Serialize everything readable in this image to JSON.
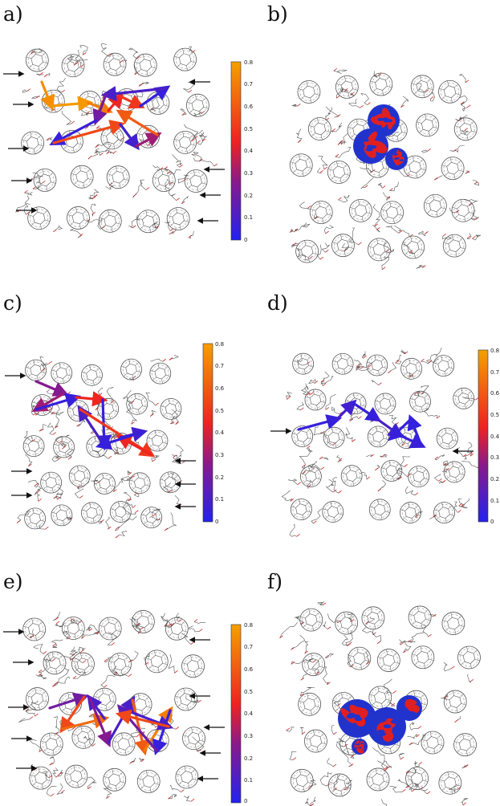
{
  "panels": [
    {
      "label": "a)",
      "scale_ticks": [
        "0.8",
        "0.7",
        "0.6",
        "0.5",
        "0.4",
        "0.3",
        "0.2",
        "0.1",
        "0"
      ]
    },
    {
      "label": "b)"
    },
    {
      "label": "c)",
      "scale_ticks": [
        "0.8",
        "0.7",
        "0.6",
        "0.5",
        "0.4",
        "0.3",
        "0.2",
        "0.1",
        "0"
      ]
    },
    {
      "label": "d)",
      "scale_ticks": [
        "0.8",
        "0.7",
        "0.6",
        "0.5",
        "0.4",
        "0.3",
        "0.2",
        "0.1",
        "0"
      ]
    },
    {
      "label": "e)",
      "scale_ticks": [
        "0.8",
        "0.7",
        "0.6",
        "0.5",
        "0.4",
        "0.3",
        "0.2",
        "0.1",
        "0"
      ]
    },
    {
      "label": "f)"
    }
  ],
  "colorscale": {
    "min": 0,
    "max": 0.8,
    "low_color": "#2222ee",
    "mid_color": "#ee2222",
    "high_color": "#f5a000"
  },
  "colors": {
    "structure": "#555555",
    "bond_red": "#cc2222",
    "arrow_black": "#111111",
    "orbital_red": "#e02020",
    "orbital_blue": "#2233cc"
  },
  "hops": {
    "a": [
      0.75,
      0.78,
      0.7,
      0.45,
      0.5,
      0.05,
      0.1,
      0.2,
      0.05,
      0.55,
      0.08,
      0.3,
      0.6
    ],
    "c": [
      0.25,
      0.3,
      0.05,
      0.45,
      0.05,
      0.1,
      0.5,
      0.45,
      0.08,
      0.05
    ],
    "d": [
      0.05,
      0.08,
      0.05,
      0.1,
      0.06,
      0.04,
      0.05
    ],
    "e": [
      0.2,
      0.55,
      0.65,
      0.1,
      0.25,
      0.1,
      0.6,
      0.7,
      0.05,
      0.2,
      0.1,
      0.55
    ]
  }
}
